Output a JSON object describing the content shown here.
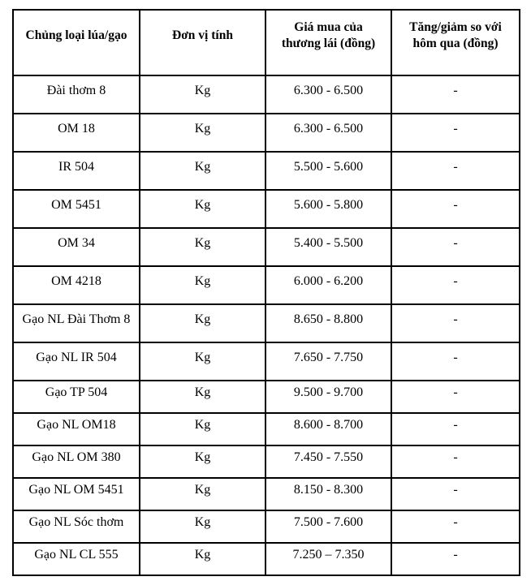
{
  "table": {
    "columns": [
      "Chủng loại lúa/gạo",
      "Đơn vị tính",
      "Giá mua của\nthương lái (đồng)",
      "Tăng/giảm so với\nhôm qua (đồng)"
    ],
    "rows": [
      {
        "type": "Đài thơm 8",
        "unit": "Kg",
        "price": "6.300 - 6.500",
        "change": "-"
      },
      {
        "type": "OM 18",
        "unit": "Kg",
        "price": "6.300 - 6.500",
        "change": "-"
      },
      {
        "type": "IR 504",
        "unit": "Kg",
        "price": "5.500 - 5.600",
        "change": "-"
      },
      {
        "type": "OM 5451",
        "unit": "Kg",
        "price": "5.600 - 5.800",
        "change": "-"
      },
      {
        "type": "OM 34",
        "unit": "Kg",
        "price": "5.400 - 5.500",
        "change": "-"
      },
      {
        "type": "OM 4218",
        "unit": "Kg",
        "price": "6.000 - 6.200",
        "change": "-"
      },
      {
        "type": "Gạo NL Đài Thơm 8",
        "unit": "Kg",
        "price": "8.650 - 8.800",
        "change": "-"
      },
      {
        "type": "Gạo NL IR 504",
        "unit": "Kg",
        "price": "7.650 - 7.750",
        "change": "-"
      },
      {
        "type": "Gạo TP 504",
        "unit": "Kg",
        "price": "9.500 - 9.700",
        "change": "-"
      },
      {
        "type": "Gạo NL OM18",
        "unit": "Kg",
        "price": "8.600 - 8.700",
        "change": "-"
      },
      {
        "type": "Gạo NL OM 380",
        "unit": "Kg",
        "price": "7.450 - 7.550",
        "change": "-"
      },
      {
        "type": "Gạo NL OM 5451",
        "unit": "Kg",
        "price": "8.150 - 8.300",
        "change": "-"
      },
      {
        "type": "Gạo NL Sóc thơm",
        "unit": "Kg",
        "price": "7.500 - 7.600",
        "change": "-"
      },
      {
        "type": "Gạo NL CL 555",
        "unit": "Kg",
        "price": "7.250 – 7.350",
        "change": "-"
      }
    ]
  },
  "colors": {
    "border": "#000000",
    "text": "#000000",
    "background": "#ffffff"
  }
}
